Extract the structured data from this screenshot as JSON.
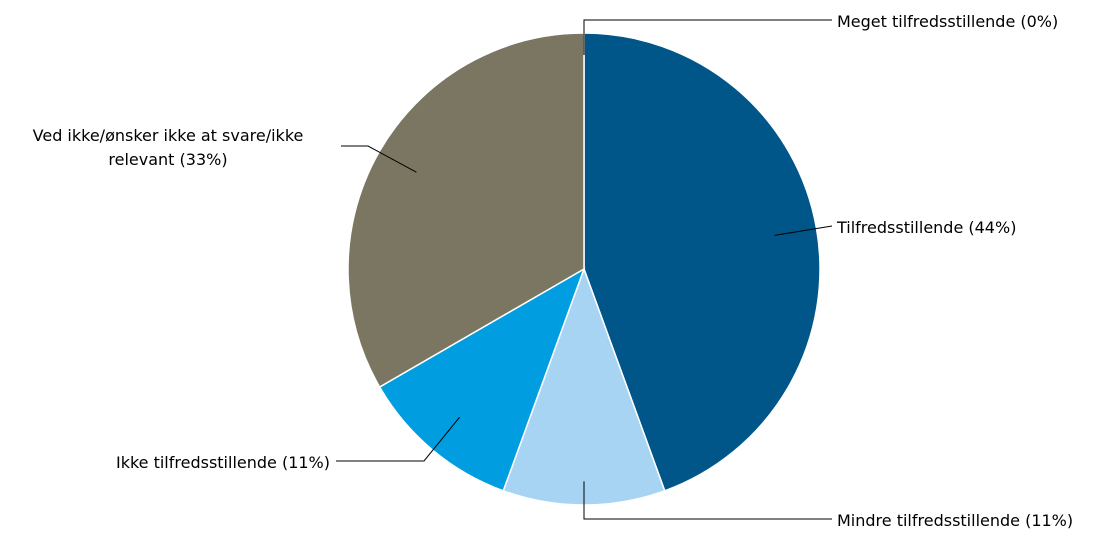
{
  "chart_data": {
    "type": "pie",
    "title": "",
    "slices": [
      {
        "label": "Meget tilfredsstillende (0%)",
        "value": 0,
        "color": "#7a7662"
      },
      {
        "label": "Tilfredsstillende (44%)",
        "value": 44,
        "color": "#005589"
      },
      {
        "label": "Mindre tilfredsstillende (11%)",
        "value": 11,
        "color": "#a8d4f4"
      },
      {
        "label": "Ikke tilfredsstillende (11%)",
        "value": 11,
        "color": "#009ee0"
      },
      {
        "label": "Ved ikke/ønsker ikke at svare/ikke",
        "label_line2": "relevant (33%)",
        "value": 33,
        "color": "#7a7662"
      }
    ],
    "start_angle_deg": 0,
    "direction": "clockwise"
  }
}
